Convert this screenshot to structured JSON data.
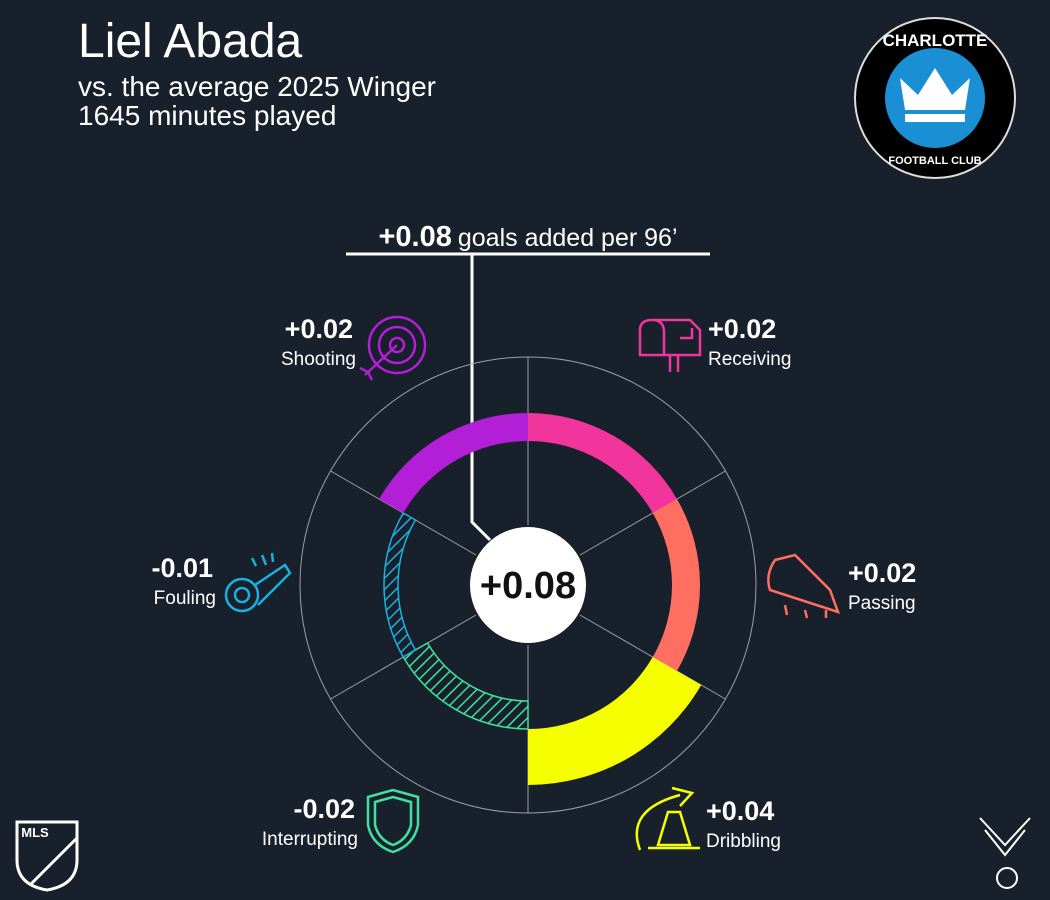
{
  "chart_data": {
    "type": "radial",
    "title": "Liel Abada",
    "subtitle": "vs. the average 2025 Winger",
    "minutes": "1645 minutes played",
    "total": 0.08,
    "total_label": "+0.08",
    "total_caption": "goals added per 96’",
    "categories": [
      "Receiving",
      "Passing",
      "Dribbling",
      "Interrupting",
      "Fouling",
      "Shooting"
    ],
    "values": [
      0.02,
      0.02,
      0.04,
      -0.02,
      -0.01,
      0.02
    ],
    "value_labels": [
      "+0.02",
      "+0.02",
      "+0.04",
      "-0.02",
      "-0.01",
      "+0.02"
    ],
    "colors": [
      "#f2359d",
      "#ff6f61",
      "#f5ff00",
      "#3fe0a0",
      "#1ab0e0",
      "#b31fd6"
    ],
    "rlim": [
      -0.06,
      0.06
    ]
  },
  "logos": {
    "club_top": "CHARLOTTE",
    "club_bottom": "FOOTBALL CLUB",
    "league": "MLS"
  }
}
